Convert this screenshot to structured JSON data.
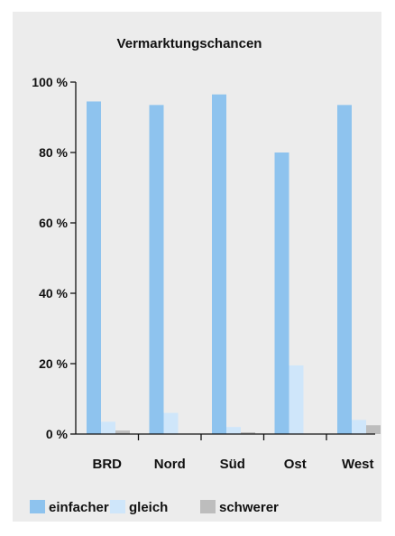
{
  "chart_data": {
    "type": "bar",
    "title": "Vermarktungschancen",
    "xlabel": "",
    "ylabel": "",
    "categories": [
      "BRD",
      "Nord",
      "Süd",
      "Ost",
      "West"
    ],
    "series": [
      {
        "name": "einfacher",
        "values": [
          94.5,
          93.5,
          96.5,
          80,
          93.5
        ]
      },
      {
        "name": "gleich",
        "values": [
          3.5,
          6,
          2,
          19.5,
          4
        ]
      },
      {
        "name": "schwerer",
        "values": [
          1,
          0,
          0.5,
          0,
          2.5
        ]
      }
    ],
    "ylim": [
      0,
      100
    ],
    "yticks": [
      0,
      20,
      40,
      60,
      80,
      100
    ],
    "ytick_labels": [
      "0 %",
      "20 %",
      "40 %",
      "60 %",
      "80 %",
      "100 %"
    ],
    "grid": false,
    "legend_position": "bottom",
    "colors": [
      "#8ec3ee",
      "#cfe6fa",
      "#bdbdbd"
    ],
    "background": "#ececec"
  }
}
